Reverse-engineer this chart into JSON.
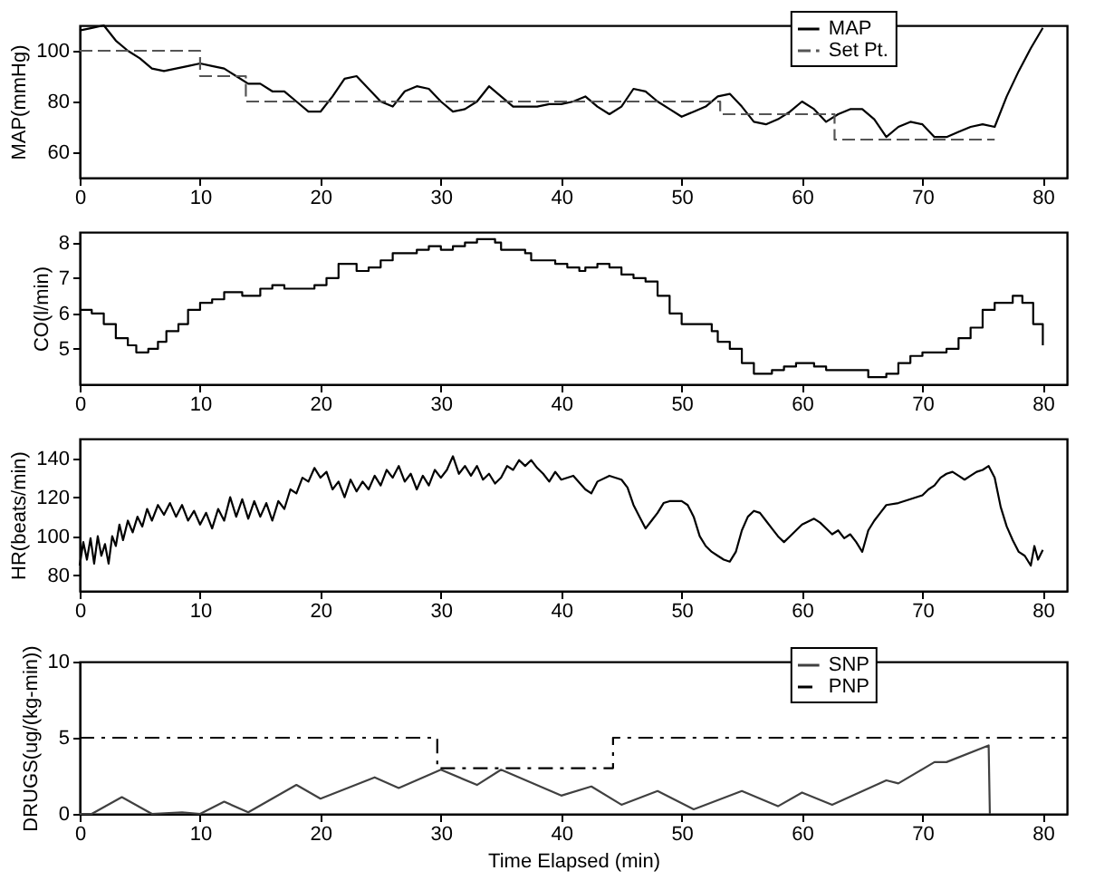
{
  "chart_data": [
    {
      "type": "line",
      "ylabel": "MAP(mmHg)",
      "xlim": [
        0,
        82
      ],
      "xticks": [
        0,
        10,
        20,
        30,
        40,
        50,
        60,
        70,
        80
      ],
      "ylim": [
        50,
        110
      ],
      "yticks": [
        60,
        80,
        100
      ],
      "legend": "top right",
      "grid": false,
      "series": [
        {
          "name": "MAP",
          "color": "#000000",
          "line_style": "solid",
          "x": [
            0,
            1,
            2,
            3,
            4,
            5,
            6,
            7,
            8,
            9,
            10,
            11,
            12,
            13,
            14,
            15,
            16,
            17,
            18,
            19,
            20,
            21,
            22,
            23,
            24,
            25,
            26,
            27,
            28,
            29,
            30,
            31,
            32,
            33,
            34,
            35,
            36,
            37,
            38,
            39,
            40,
            41,
            42,
            43,
            44,
            45,
            46,
            47,
            48,
            49,
            50,
            51,
            52,
            53,
            54,
            55,
            56,
            57,
            58,
            59,
            60,
            61,
            62,
            63,
            64,
            65,
            66,
            67,
            68,
            69,
            70,
            71,
            72,
            73,
            74,
            75,
            76,
            77,
            78,
            79,
            80
          ],
          "values": [
            108,
            109,
            110,
            104,
            100,
            97,
            93,
            92,
            93,
            94,
            95,
            94,
            93,
            90,
            87,
            87,
            84,
            84,
            80,
            76,
            76,
            82,
            89,
            90,
            85,
            80,
            78,
            84,
            86,
            85,
            80,
            76,
            77,
            80,
            86,
            82,
            78,
            78,
            78,
            79,
            79,
            80,
            82,
            78,
            75,
            78,
            85,
            84,
            80,
            77,
            74,
            76,
            78,
            82,
            83,
            78,
            72,
            71,
            73,
            76,
            80,
            77,
            72,
            75,
            77,
            77,
            73,
            66,
            70,
            72,
            71,
            66,
            66,
            68,
            70,
            71,
            70,
            82,
            92,
            101,
            109
          ]
        },
        {
          "name": "Set Pt.",
          "type": "step",
          "color": "#555555",
          "line_style": "dashed",
          "x": [
            0,
            10,
            13.8,
            53.2,
            62.7,
            76
          ],
          "values": [
            100,
            90,
            80,
            75,
            65,
            65
          ]
        }
      ]
    },
    {
      "type": "step",
      "ylabel": "CO(l/min)",
      "xlim": [
        0,
        82
      ],
      "xticks": [
        0,
        10,
        20,
        30,
        40,
        50,
        60,
        70,
        80
      ],
      "ylim": [
        4,
        8.3
      ],
      "yticks": [
        5,
        6,
        7,
        8
      ],
      "grid": false,
      "series": [
        {
          "color": "#000000",
          "line_style": "solid",
          "x": [
            0,
            1,
            2,
            3,
            4,
            4.7,
            5.7,
            6.5,
            7.2,
            8.2,
            9,
            10,
            11,
            12,
            13.5,
            15,
            16,
            17,
            19.5,
            20.5,
            21.5,
            23,
            24,
            25,
            26,
            28,
            29,
            30,
            31,
            32,
            33,
            34.5,
            35,
            37,
            37.5,
            39.5,
            40.5,
            41.5,
            42,
            43,
            44,
            45,
            46,
            47,
            48,
            49,
            50,
            52.5,
            53,
            54,
            55,
            56,
            57.5,
            58.5,
            59.5,
            61,
            62,
            65.5,
            67,
            68,
            69,
            70,
            72,
            73,
            74,
            75,
            76,
            77.5,
            78.3,
            79.2,
            80
          ],
          "values": [
            6.1,
            6.0,
            5.7,
            5.3,
            5.1,
            4.9,
            5.0,
            5.2,
            5.5,
            5.7,
            6.1,
            6.3,
            6.4,
            6.6,
            6.5,
            6.7,
            6.8,
            6.7,
            6.8,
            7.0,
            7.4,
            7.2,
            7.3,
            7.5,
            7.7,
            7.8,
            7.9,
            7.8,
            7.9,
            8.0,
            8.1,
            8.0,
            7.8,
            7.7,
            7.5,
            7.4,
            7.3,
            7.2,
            7.3,
            7.4,
            7.3,
            7.1,
            7.0,
            6.9,
            6.5,
            6.0,
            5.7,
            5.5,
            5.2,
            5.0,
            4.6,
            4.3,
            4.4,
            4.5,
            4.6,
            4.5,
            4.4,
            4.2,
            4.3,
            4.6,
            4.8,
            4.9,
            5.0,
            5.3,
            5.6,
            6.1,
            6.3,
            6.5,
            6.3,
            5.7,
            5.1
          ]
        }
      ]
    },
    {
      "type": "line",
      "ylabel": "HR(beats/min)",
      "xlim": [
        0,
        82
      ],
      "xticks": [
        0,
        10,
        20,
        30,
        40,
        50,
        60,
        70,
        80
      ],
      "ylim": [
        72,
        150
      ],
      "yticks": [
        80,
        100,
        120,
        140
      ],
      "grid": false,
      "series": [
        {
          "color": "#000000",
          "line_style": "solid",
          "x": [
            0,
            0.3,
            0.6,
            0.9,
            1.2,
            1.5,
            1.8,
            2.1,
            2.4,
            2.7,
            3,
            3.3,
            3.6,
            4,
            4.4,
            4.8,
            5.2,
            5.6,
            6,
            6.5,
            7,
            7.5,
            8,
            8.5,
            9,
            9.5,
            10,
            10.5,
            11,
            11.5,
            12,
            12.5,
            13,
            13.5,
            14,
            14.5,
            15,
            15.5,
            16,
            16.5,
            17,
            17.5,
            18,
            18.5,
            19,
            19.5,
            20,
            20.5,
            21,
            21.5,
            22,
            22.5,
            23,
            23.5,
            24,
            24.5,
            25,
            25.5,
            26,
            26.5,
            27,
            27.5,
            28,
            28.5,
            29,
            29.5,
            30,
            30.5,
            31,
            31.5,
            32,
            32.5,
            33,
            33.5,
            34,
            34.5,
            35,
            35.5,
            36,
            36.5,
            37,
            37.5,
            38,
            38.5,
            39,
            39.5,
            40,
            41,
            42,
            42.5,
            43,
            44,
            45,
            45.5,
            46,
            46.5,
            47,
            47.5,
            48,
            48.5,
            49,
            50,
            50.5,
            51,
            51.5,
            52,
            52.5,
            53,
            53.5,
            54,
            54.5,
            55,
            55.5,
            56,
            56.5,
            57,
            57.5,
            58,
            58.5,
            59,
            59.5,
            60,
            61,
            61.5,
            62,
            62.5,
            63,
            63.5,
            64,
            64.5,
            65,
            65.5,
            66,
            66.5,
            67,
            68,
            69,
            70,
            70.5,
            71,
            71.5,
            72,
            72.5,
            73,
            73.5,
            74,
            74.5,
            75,
            75.5,
            76,
            76.5,
            77,
            77.5,
            78,
            78.5,
            79,
            79.3,
            79.6,
            80
          ],
          "values": [
            85,
            97,
            88,
            99,
            86,
            100,
            90,
            96,
            86,
            100,
            95,
            106,
            98,
            108,
            102,
            110,
            105,
            114,
            108,
            116,
            111,
            117,
            110,
            116,
            108,
            113,
            106,
            112,
            104,
            114,
            108,
            120,
            110,
            119,
            109,
            118,
            110,
            117,
            108,
            118,
            114,
            124,
            122,
            130,
            128,
            135,
            130,
            133,
            124,
            128,
            120,
            129,
            123,
            128,
            124,
            131,
            126,
            134,
            130,
            136,
            128,
            132,
            124,
            131,
            126,
            134,
            130,
            134,
            141,
            132,
            136,
            131,
            136,
            129,
            132,
            127,
            130,
            136,
            134,
            139,
            136,
            139,
            135,
            132,
            128,
            133,
            129,
            131,
            124,
            122,
            128,
            131,
            129,
            125,
            116,
            110,
            104,
            108,
            112,
            117,
            118,
            118,
            116,
            110,
            100,
            95,
            92,
            90,
            88,
            87,
            92,
            103,
            110,
            113,
            112,
            108,
            104,
            100,
            97,
            100,
            103,
            106,
            109,
            107,
            104,
            101,
            103,
            99,
            101,
            97,
            92,
            103,
            108,
            112,
            116,
            117,
            119,
            121,
            124,
            126,
            130,
            132,
            133,
            131,
            129,
            131,
            133,
            134,
            136,
            130,
            115,
            105,
            98,
            92,
            90,
            85,
            95,
            88,
            93
          ]
        }
      ]
    },
    {
      "type": "line",
      "ylabel": "DRUGS(ug/(kg-min))",
      "xlabel": "Time Elapsed (min)",
      "xlim": [
        0,
        82
      ],
      "xticks": [
        0,
        10,
        20,
        30,
        40,
        50,
        60,
        70,
        80
      ],
      "ylim": [
        0,
        10
      ],
      "yticks": [
        0,
        5,
        10
      ],
      "legend": "top right",
      "grid": false,
      "series": [
        {
          "name": "SNP",
          "color": "#404040",
          "line_style": "solid",
          "x": [
            0,
            1,
            3.5,
            6,
            8.5,
            10,
            12,
            14,
            18,
            20,
            24.5,
            26.5,
            30,
            33,
            35,
            40,
            42.5,
            45,
            48,
            51,
            55,
            58,
            60,
            62.5,
            67,
            68,
            71,
            72,
            75.5,
            75.6
          ],
          "values": [
            0,
            0,
            1.1,
            0,
            0.1,
            0,
            0.8,
            0.1,
            1.9,
            1.0,
            2.4,
            1.7,
            2.9,
            1.9,
            2.9,
            1.2,
            1.8,
            0.6,
            1.5,
            0.3,
            1.5,
            0.5,
            1.4,
            0.6,
            2.2,
            2.0,
            3.4,
            3.4,
            4.5,
            0
          ]
        },
        {
          "name": "PNP",
          "type": "step",
          "color": "#000000",
          "line_style": "dashdot",
          "x": [
            0,
            29.7,
            44.3,
            82
          ],
          "values": [
            5,
            3,
            5,
            5
          ]
        }
      ]
    }
  ]
}
